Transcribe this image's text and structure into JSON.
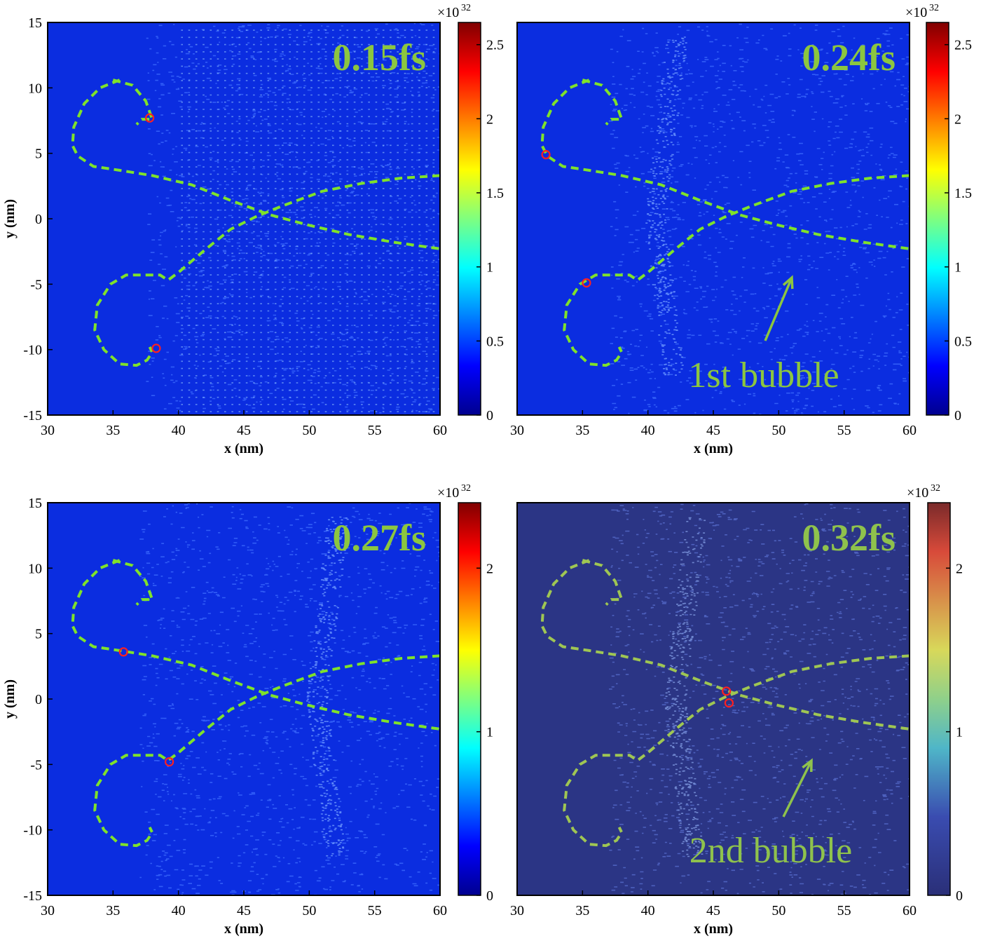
{
  "figure": {
    "colors": {
      "trajectory": "#7fe22a",
      "marker": "#ff2020",
      "label_green": "#8cc63f"
    }
  },
  "chart_data": [
    {
      "type": "heatmap",
      "time_label": "0.15fs",
      "xlabel": "x (nm)",
      "ylabel": "y (nm)",
      "xlim": [
        30,
        60
      ],
      "ylim": [
        -15,
        15
      ],
      "xticks": [
        30,
        35,
        40,
        45,
        50,
        55,
        60
      ],
      "yticks": [
        15,
        10,
        5,
        0,
        -5,
        -10,
        -15
      ],
      "colorbar": {
        "multiplier": "×10",
        "exponent": "32",
        "range": [
          0,
          2.65
        ],
        "ticks": [
          "2.5",
          "2",
          "1.5",
          "1",
          "0.5",
          "0"
        ],
        "tick_values": [
          2.5,
          2,
          1.5,
          1,
          0.5,
          0
        ]
      },
      "annotation": "",
      "markers": [
        [
          37.8,
          7.7
        ],
        [
          38.3,
          -9.9
        ]
      ]
    },
    {
      "type": "heatmap",
      "time_label": "0.24fs",
      "xlabel": "x (nm)",
      "ylabel": "",
      "xlim": [
        30,
        60
      ],
      "ylim": [
        -15,
        15
      ],
      "xticks": [
        30,
        35,
        40,
        45,
        50,
        55,
        60
      ],
      "yticks": [],
      "colorbar": {
        "multiplier": "×10",
        "exponent": "32",
        "range": [
          0,
          2.65
        ],
        "ticks": [
          "2.5",
          "2",
          "1.5",
          "1",
          "0.5",
          "0"
        ],
        "tick_values": [
          2.5,
          2,
          1.5,
          1,
          0.5,
          0
        ]
      },
      "annotation": "1st bubble",
      "markers": [
        [
          32.2,
          4.9
        ],
        [
          35.3,
          -4.9
        ]
      ]
    },
    {
      "type": "heatmap",
      "time_label": "0.27fs",
      "xlabel": "x (nm)",
      "ylabel": "y (nm)",
      "xlim": [
        30,
        60
      ],
      "ylim": [
        -15,
        15
      ],
      "xticks": [
        30,
        35,
        40,
        45,
        50,
        55,
        60
      ],
      "yticks": [
        15,
        10,
        5,
        0,
        -5,
        -10,
        -15
      ],
      "colorbar": {
        "multiplier": "×10",
        "exponent": "32",
        "range": [
          0,
          2.4
        ],
        "ticks": [
          "2",
          "1",
          "0"
        ],
        "tick_values": [
          2,
          1,
          0
        ]
      },
      "annotation": "",
      "markers": [
        [
          35.8,
          3.6
        ],
        [
          39.3,
          -4.8
        ]
      ]
    },
    {
      "type": "heatmap",
      "time_label": "0.32fs",
      "xlabel": "x (nm)",
      "ylabel": "",
      "xlim": [
        30,
        60
      ],
      "ylim": [
        -15,
        15
      ],
      "xticks": [
        30,
        35,
        40,
        45,
        50,
        55,
        60
      ],
      "yticks": [],
      "colorbar": {
        "multiplier": "×10",
        "exponent": "32",
        "range": [
          0,
          2.4
        ],
        "ticks": [
          "2",
          "1",
          "0"
        ],
        "tick_values": [
          2,
          1,
          0
        ]
      },
      "annotation": "2nd bubble",
      "markers": [
        [
          46.0,
          0.6
        ],
        [
          46.2,
          -0.3
        ]
      ]
    }
  ]
}
